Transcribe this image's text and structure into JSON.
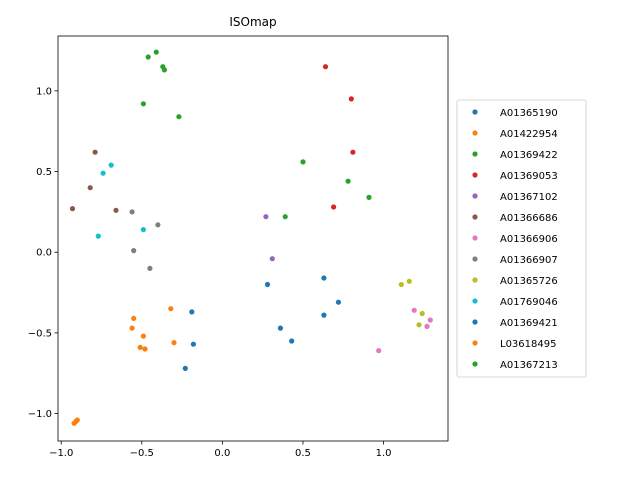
{
  "chart_data": {
    "type": "scatter",
    "title": "ISOmap",
    "xlabel": "",
    "ylabel": "",
    "xlim": [
      -1.02,
      1.4
    ],
    "ylim": [
      -1.17,
      1.34
    ],
    "xticks": [
      -1.0,
      -0.5,
      0.0,
      0.5,
      1.0
    ],
    "xtick_labels": [
      "−1.0",
      "−0.5",
      "0.0",
      "0.5",
      "1.0"
    ],
    "yticks": [
      -1.0,
      -0.5,
      0.0,
      0.5,
      1.0
    ],
    "ytick_labels": [
      "−1.0",
      "−0.5",
      "0.0",
      "0.5",
      "1.0"
    ],
    "grid": false,
    "legend_position": "right-outside",
    "series": [
      {
        "name": "A01365190",
        "color": "#1f77b4",
        "points": [
          [
            0.28,
            -0.2
          ],
          [
            0.36,
            -0.47
          ],
          [
            0.43,
            -0.55
          ],
          [
            0.63,
            -0.16
          ],
          [
            0.63,
            -0.39
          ],
          [
            0.72,
            -0.31
          ]
        ]
      },
      {
        "name": "A01422954",
        "color": "#ff7f0e",
        "points": [
          [
            -0.92,
            -1.06
          ],
          [
            -0.91,
            -1.05
          ],
          [
            -0.9,
            -1.04
          ]
        ]
      },
      {
        "name": "A01369422",
        "color": "#2ca02c",
        "points": [
          [
            0.39,
            0.22
          ],
          [
            0.5,
            0.56
          ],
          [
            0.78,
            0.44
          ],
          [
            0.91,
            0.34
          ]
        ]
      },
      {
        "name": "A01369053",
        "color": "#d62728",
        "points": [
          [
            0.64,
            1.15
          ],
          [
            0.69,
            0.28
          ],
          [
            0.8,
            0.95
          ],
          [
            0.81,
            0.62
          ]
        ]
      },
      {
        "name": "A01367102",
        "color": "#9467bd",
        "points": [
          [
            0.27,
            0.22
          ],
          [
            0.31,
            -0.04
          ]
        ]
      },
      {
        "name": "A01366686",
        "color": "#8c564b",
        "points": [
          [
            -0.93,
            0.27
          ],
          [
            -0.82,
            0.4
          ],
          [
            -0.79,
            0.62
          ],
          [
            -0.66,
            0.26
          ]
        ]
      },
      {
        "name": "A01366906",
        "color": "#e377c2",
        "points": [
          [
            0.97,
            -0.61
          ],
          [
            1.19,
            -0.36
          ],
          [
            1.27,
            -0.46
          ],
          [
            1.29,
            -0.42
          ]
        ]
      },
      {
        "name": "A01366907",
        "color": "#7f7f7f",
        "points": [
          [
            -0.56,
            0.25
          ],
          [
            -0.55,
            0.01
          ],
          [
            -0.45,
            -0.1
          ],
          [
            -0.4,
            0.17
          ]
        ]
      },
      {
        "name": "A01365726",
        "color": "#bcbd22",
        "points": [
          [
            1.11,
            -0.2
          ],
          [
            1.16,
            -0.18
          ],
          [
            1.22,
            -0.45
          ],
          [
            1.24,
            -0.38
          ]
        ]
      },
      {
        "name": "A01769046",
        "color": "#17becf",
        "points": [
          [
            -0.77,
            0.1
          ],
          [
            -0.74,
            0.49
          ],
          [
            -0.69,
            0.54
          ],
          [
            -0.49,
            0.14
          ]
        ]
      },
      {
        "name": "A01369421",
        "color": "#1f77b4",
        "points": [
          [
            -0.23,
            -0.72
          ],
          [
            -0.19,
            -0.37
          ],
          [
            -0.18,
            -0.57
          ]
        ]
      },
      {
        "name": "L03618495",
        "color": "#ff7f0e",
        "points": [
          [
            -0.56,
            -0.47
          ],
          [
            -0.55,
            -0.41
          ],
          [
            -0.51,
            -0.59
          ],
          [
            -0.49,
            -0.52
          ],
          [
            -0.48,
            -0.6
          ],
          [
            -0.32,
            -0.35
          ],
          [
            -0.3,
            -0.56
          ]
        ]
      },
      {
        "name": "A01367213",
        "color": "#2ca02c",
        "points": [
          [
            -0.49,
            0.92
          ],
          [
            -0.46,
            1.21
          ],
          [
            -0.41,
            1.24
          ],
          [
            -0.37,
            1.15
          ],
          [
            -0.36,
            1.13
          ],
          [
            -0.27,
            0.84
          ]
        ]
      }
    ]
  }
}
